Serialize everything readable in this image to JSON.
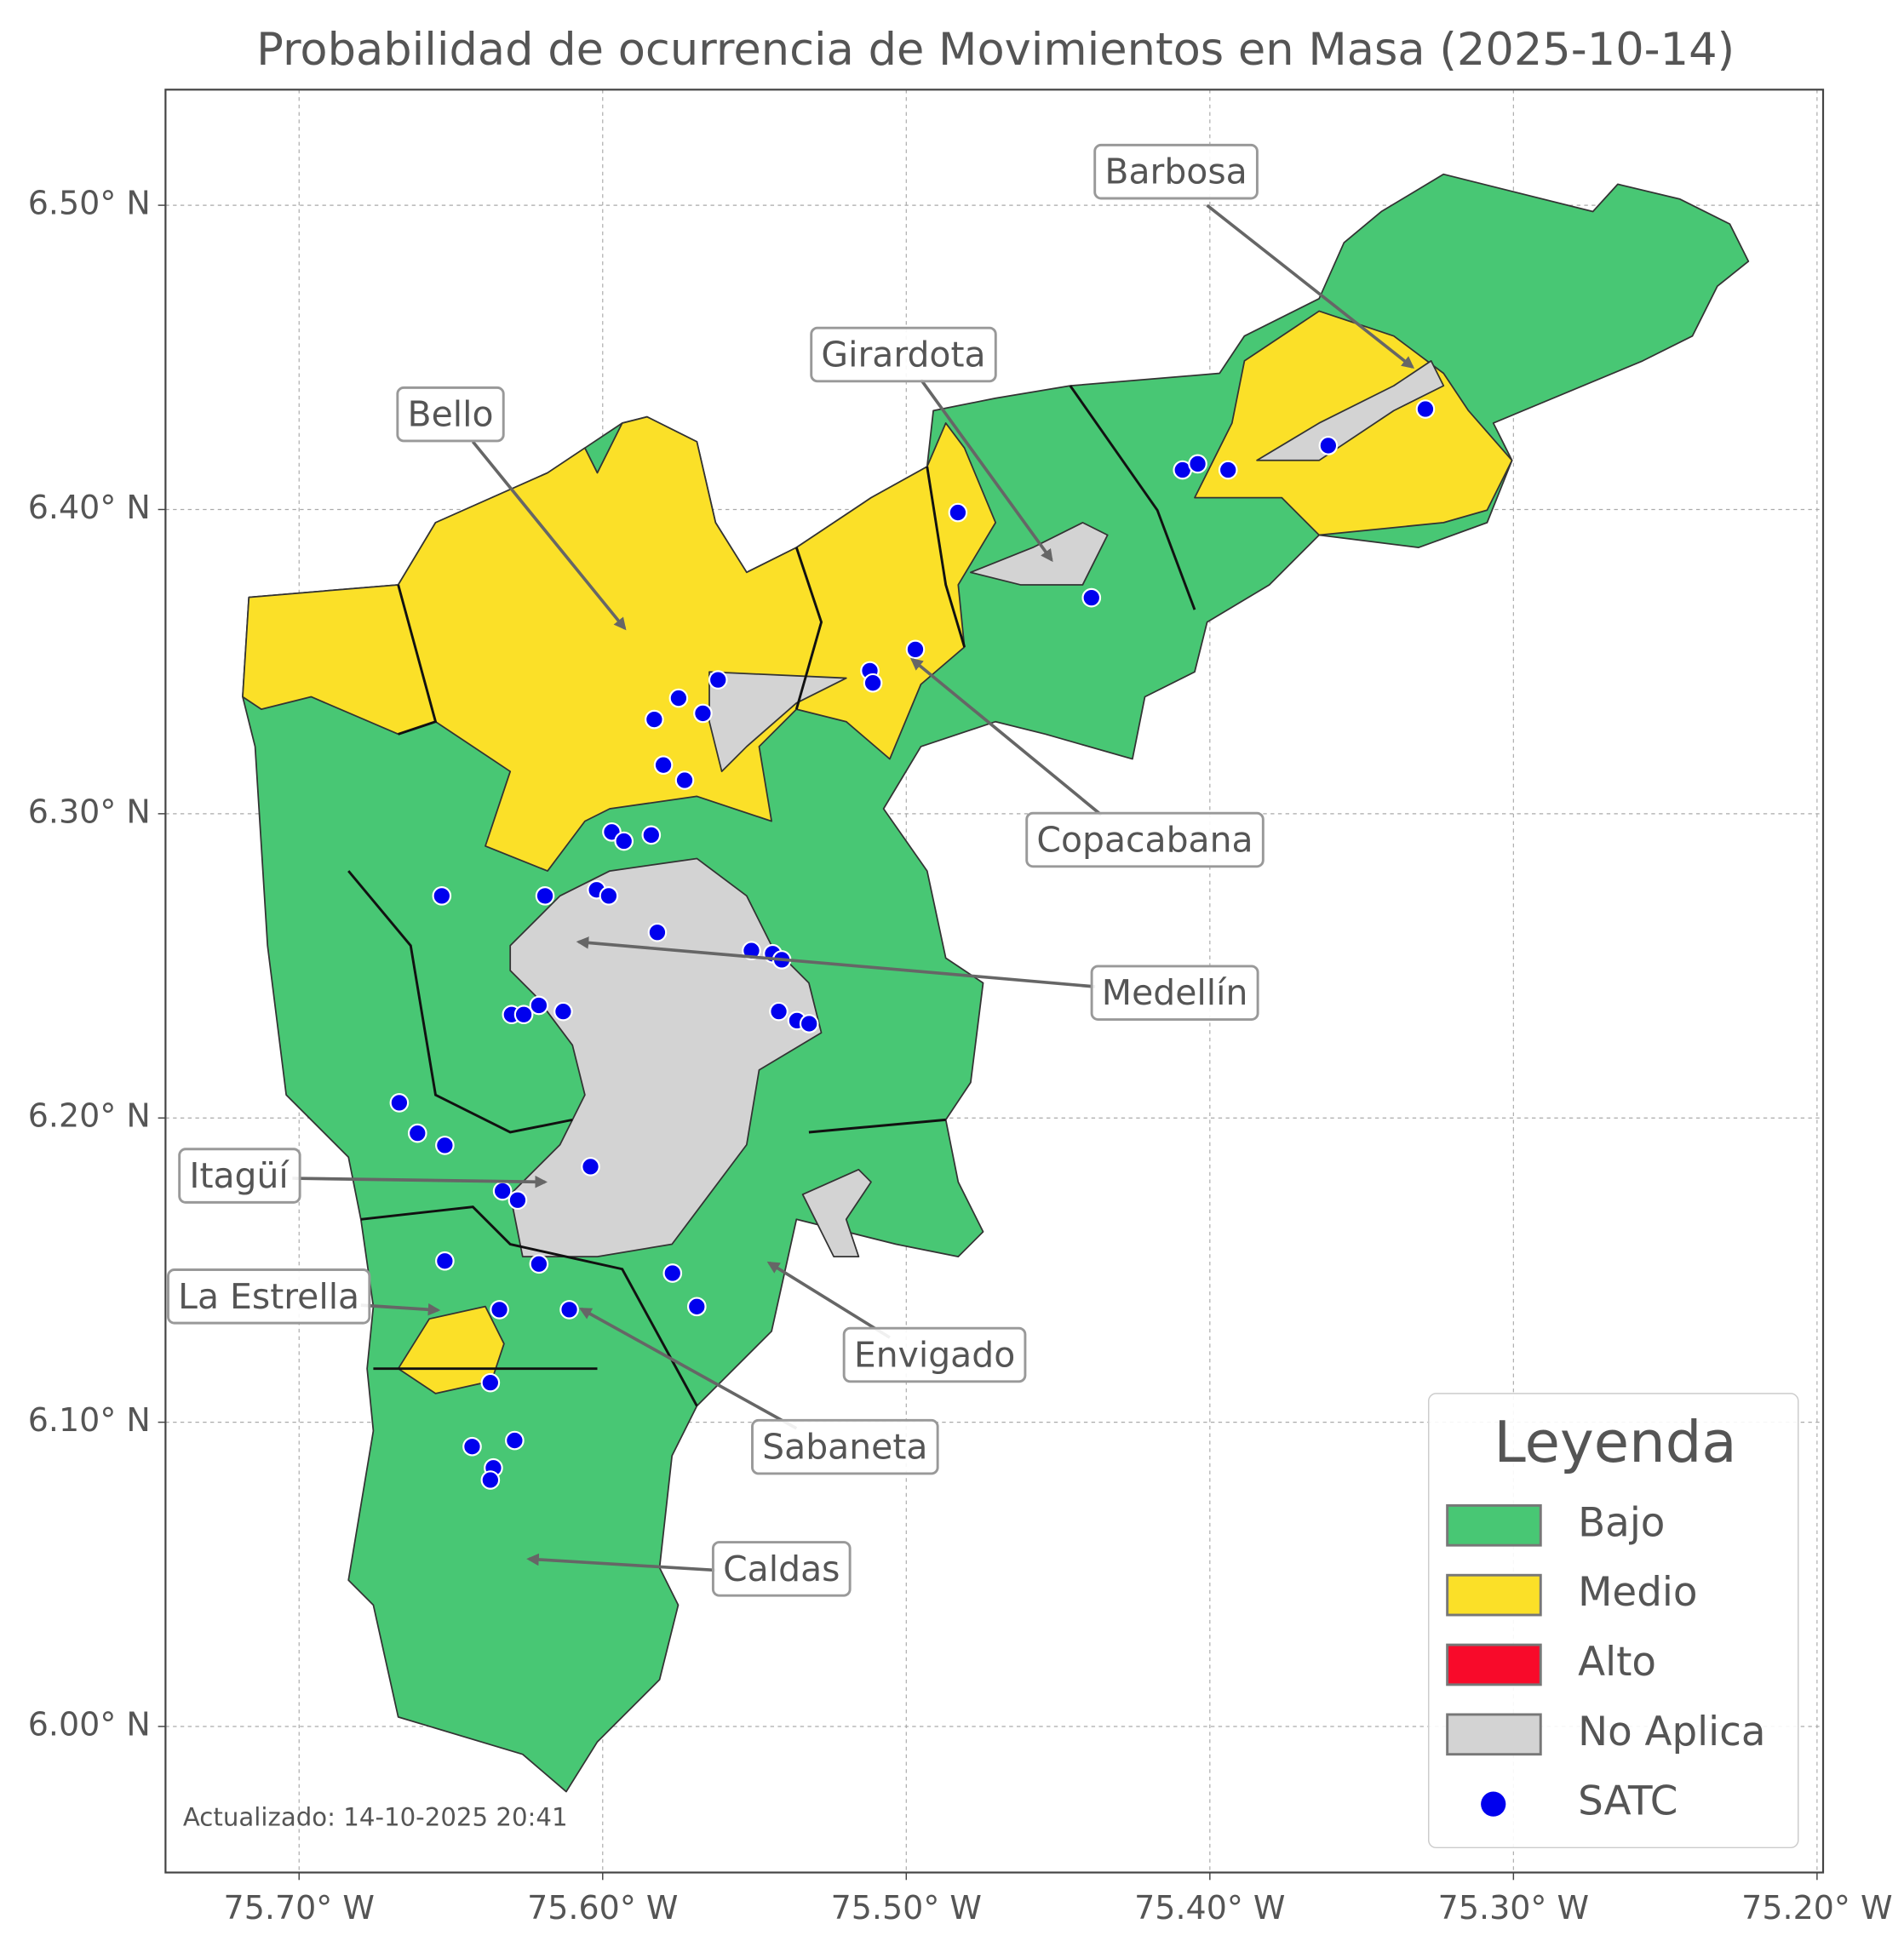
{
  "title": "Probabilidad de ocurrencia de Movimientos en Masa (2025-10-14)",
  "axes": {
    "xlim": [
      -75.744,
      -75.198
    ],
    "ylim": [
      5.952,
      6.538
    ],
    "xticks": [
      {
        "value": -75.7,
        "label": "75.70° W"
      },
      {
        "value": -75.6,
        "label": "75.60° W"
      },
      {
        "value": -75.5,
        "label": "75.50° W"
      },
      {
        "value": -75.4,
        "label": "75.40° W"
      },
      {
        "value": -75.3,
        "label": "75.30° W"
      },
      {
        "value": -75.2,
        "label": "75.20° W"
      }
    ],
    "yticks": [
      {
        "value": 6.0,
        "label": "6.00° N"
      },
      {
        "value": 6.1,
        "label": "6.10° N"
      },
      {
        "value": 6.2,
        "label": "6.20° N"
      },
      {
        "value": 6.3,
        "label": "6.30° N"
      },
      {
        "value": 6.4,
        "label": "6.40° N"
      },
      {
        "value": 6.5,
        "label": "6.50° N"
      }
    ],
    "grid": true
  },
  "points_color": "#0000ee",
  "points": [
    {
      "lon": -75.483,
      "lat": 6.399
    },
    {
      "lon": -75.409,
      "lat": 6.413
    },
    {
      "lon": -75.404,
      "lat": 6.415
    },
    {
      "lon": -75.394,
      "lat": 6.413
    },
    {
      "lon": -75.361,
      "lat": 6.421
    },
    {
      "lon": -75.329,
      "lat": 6.433
    },
    {
      "lon": -75.439,
      "lat": 6.371
    },
    {
      "lon": -75.497,
      "lat": 6.354
    },
    {
      "lon": -75.512,
      "lat": 6.347
    },
    {
      "lon": -75.511,
      "lat": 6.343
    },
    {
      "lon": -75.562,
      "lat": 6.344
    },
    {
      "lon": -75.575,
      "lat": 6.338
    },
    {
      "lon": -75.567,
      "lat": 6.333
    },
    {
      "lon": -75.583,
      "lat": 6.331
    },
    {
      "lon": -75.58,
      "lat": 6.316
    },
    {
      "lon": -75.573,
      "lat": 6.311
    },
    {
      "lon": -75.597,
      "lat": 6.294
    },
    {
      "lon": -75.593,
      "lat": 6.291
    },
    {
      "lon": -75.584,
      "lat": 6.293
    },
    {
      "lon": -75.653,
      "lat": 6.273
    },
    {
      "lon": -75.619,
      "lat": 6.273
    },
    {
      "lon": -75.602,
      "lat": 6.275
    },
    {
      "lon": -75.598,
      "lat": 6.273
    },
    {
      "lon": -75.582,
      "lat": 6.261
    },
    {
      "lon": -75.551,
      "lat": 6.255
    },
    {
      "lon": -75.544,
      "lat": 6.254
    },
    {
      "lon": -75.541,
      "lat": 6.252
    },
    {
      "lon": -75.542,
      "lat": 6.235
    },
    {
      "lon": -75.536,
      "lat": 6.232
    },
    {
      "lon": -75.532,
      "lat": 6.231
    },
    {
      "lon": -75.621,
      "lat": 6.237
    },
    {
      "lon": -75.63,
      "lat": 6.234
    },
    {
      "lon": -75.626,
      "lat": 6.234
    },
    {
      "lon": -75.613,
      "lat": 6.235
    },
    {
      "lon": -75.667,
      "lat": 6.205
    },
    {
      "lon": -75.661,
      "lat": 6.195
    },
    {
      "lon": -75.652,
      "lat": 6.191
    },
    {
      "lon": -75.604,
      "lat": 6.184
    },
    {
      "lon": -75.633,
      "lat": 6.176
    },
    {
      "lon": -75.628,
      "lat": 6.173
    },
    {
      "lon": -75.652,
      "lat": 6.153
    },
    {
      "lon": -75.621,
      "lat": 6.152
    },
    {
      "lon": -75.577,
      "lat": 6.149
    },
    {
      "lon": -75.569,
      "lat": 6.138
    },
    {
      "lon": -75.634,
      "lat": 6.137
    },
    {
      "lon": -75.611,
      "lat": 6.137
    },
    {
      "lon": -75.637,
      "lat": 6.113
    },
    {
      "lon": -75.643,
      "lat": 6.092
    },
    {
      "lon": -75.629,
      "lat": 6.094
    },
    {
      "lon": -75.636,
      "lat": 6.085
    },
    {
      "lon": -75.637,
      "lat": 6.081
    }
  ],
  "annotations": [
    "Barbosa",
    "Girardota",
    "Bello",
    "Copacabana",
    "Medellín",
    "Itagüí",
    "La Estrella",
    "Envigado",
    "Sabaneta",
    "Caldas"
  ],
  "legend": {
    "title": "Leyenda",
    "items": [
      {
        "label": "Bajo",
        "color": "#48c774"
      },
      {
        "label": "Medio",
        "color": "#fbe028"
      },
      {
        "label": "Alto",
        "color": "#f80a2a"
      },
      {
        "label": "No Aplica",
        "color": "#d3d3d3"
      },
      {
        "label": "SATC",
        "color": "#0000ee"
      }
    ]
  },
  "footer": "Actualizado: 14-10-2025 20:41"
}
